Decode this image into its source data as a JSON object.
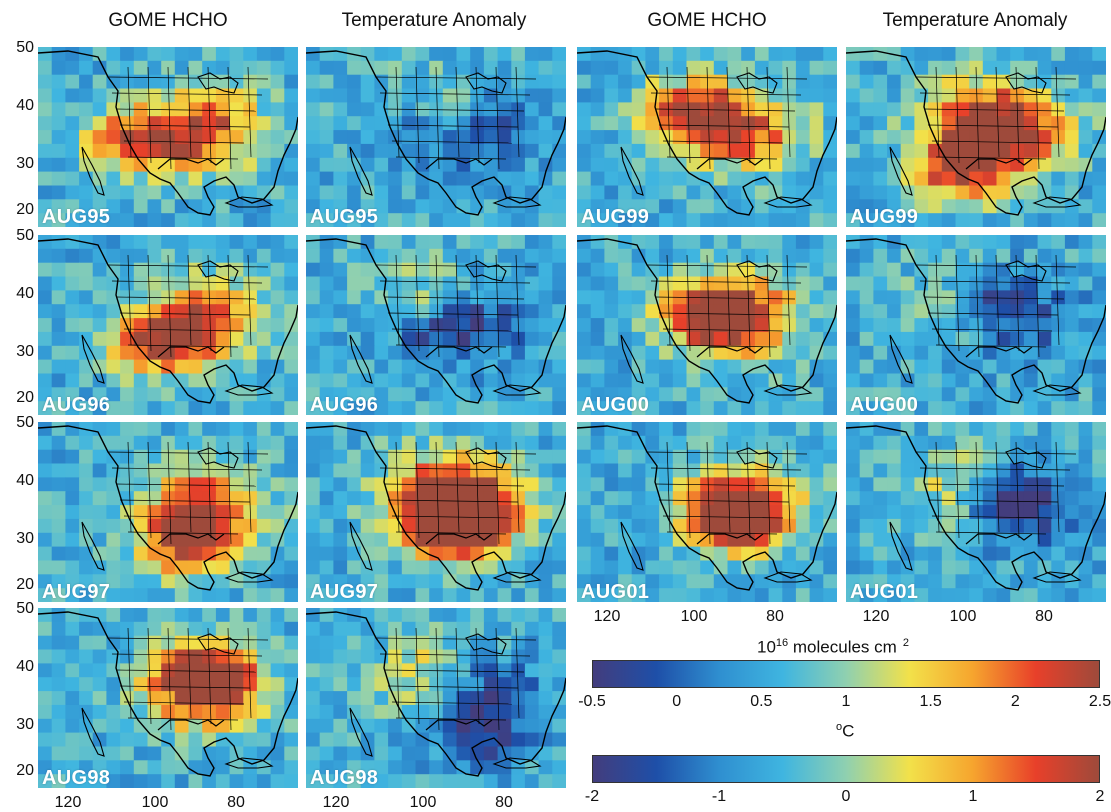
{
  "column_titles": [
    "GOME HCHO",
    "Temperature Anomaly",
    "GOME HCHO",
    "Temperature Anomaly"
  ],
  "panels": [
    {
      "label": "AUG95",
      "kind": "hcho"
    },
    {
      "label": "AUG95",
      "kind": "temp"
    },
    {
      "label": "AUG99",
      "kind": "hcho"
    },
    {
      "label": "AUG99",
      "kind": "temp"
    },
    {
      "label": "AUG96",
      "kind": "hcho"
    },
    {
      "label": "AUG96",
      "kind": "temp"
    },
    {
      "label": "AUG00",
      "kind": "hcho"
    },
    {
      "label": "AUG00",
      "kind": "temp"
    },
    {
      "label": "AUG97",
      "kind": "hcho"
    },
    {
      "label": "AUG97",
      "kind": "temp"
    },
    {
      "label": "AUG01",
      "kind": "hcho"
    },
    {
      "label": "AUG01",
      "kind": "temp"
    },
    {
      "label": "AUG98",
      "kind": "hcho"
    },
    {
      "label": "AUG98",
      "kind": "temp"
    }
  ],
  "lat_ticks": [
    "50",
    "40",
    "30",
    "20"
  ],
  "lon_ticks": [
    "120",
    "100",
    "80"
  ],
  "colorbar_hcho": {
    "title_base": "10",
    "title_exp": "16",
    "title_rest": " molecules cm",
    "title_exp2": "2",
    "ticks": [
      "-0.5",
      "0",
      "0.5",
      "1",
      "1.5",
      "2",
      "2.5"
    ],
    "range": [
      -0.5,
      2.5
    ]
  },
  "colorbar_temp": {
    "title_base": "o",
    "title_rest": "C",
    "ticks": [
      "-2",
      "-1",
      "0",
      "1",
      "2"
    ],
    "range": [
      -2,
      2
    ]
  },
  "colors": {
    "scale": [
      "#433d7d",
      "#1e4fa8",
      "#2f8fd0",
      "#3fb5e0",
      "#8fd0b0",
      "#f2e14a",
      "#f6a52e",
      "#e8402a",
      "#9e4a3b"
    ]
  }
}
